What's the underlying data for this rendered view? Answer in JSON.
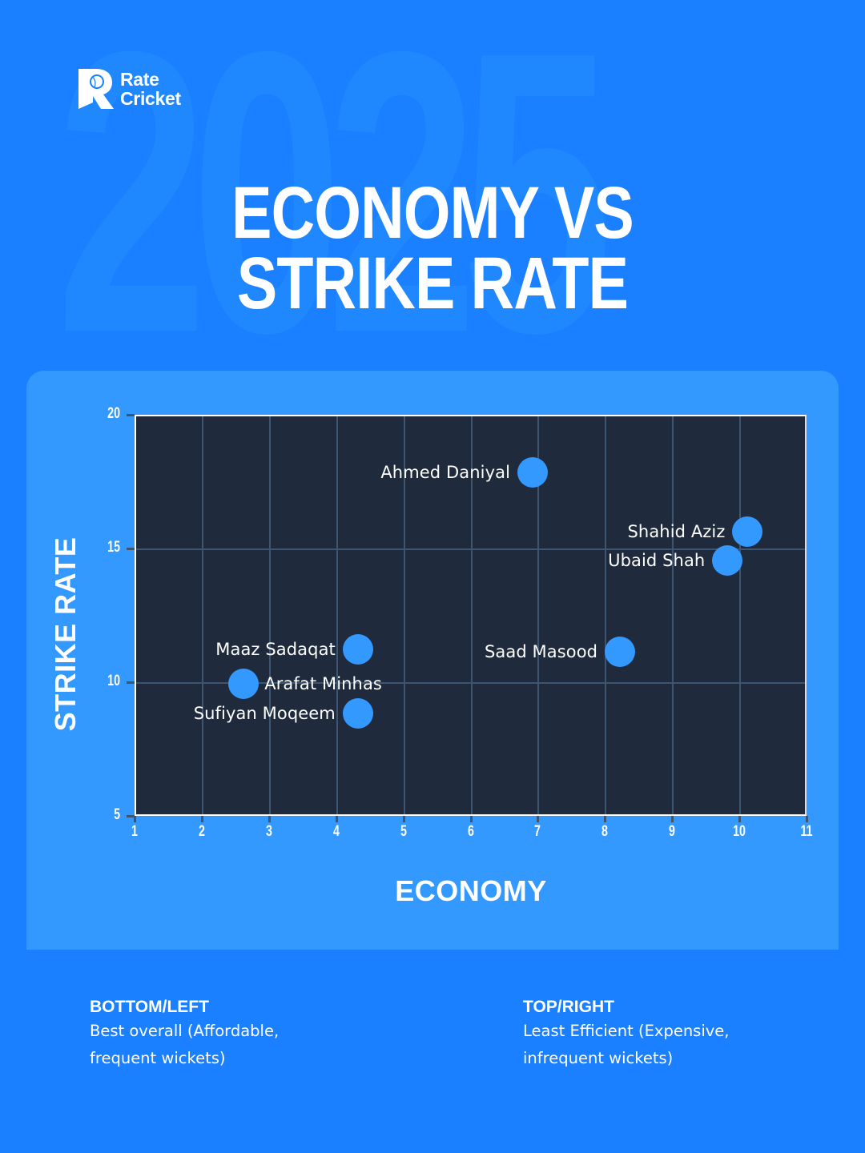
{
  "watermark": "2025",
  "brand": {
    "line1": "Rate",
    "line2": "Cricket"
  },
  "title": {
    "line1": "ECONOMY VS",
    "line2": "STRIKE RATE"
  },
  "colors": {
    "background": "#1a80ff",
    "panel": "#3399ff",
    "plot_bg": "#1f2a3d",
    "grid": "#3d5571",
    "marker": "#3399ff",
    "text": "#ffffff"
  },
  "axes": {
    "x_title": "ECONOMY",
    "y_title": "STRIKE RATE",
    "x_ticks": [
      "1",
      "2",
      "3",
      "4",
      "5",
      "6",
      "7",
      "8",
      "9",
      "10",
      "11"
    ],
    "y_ticks": [
      "20",
      "15",
      "10",
      "5"
    ]
  },
  "legend": [
    {
      "heading": "BOTTOM/LEFT",
      "line1": "Best overall (Affordable,",
      "line2": "frequent wickets)"
    },
    {
      "heading": "TOP/RIGHT",
      "line1": "Least Efficient (Expensive,",
      "line2": "infrequent wickets)"
    }
  ],
  "chart_data": {
    "type": "scatter",
    "title": "ECONOMY VS STRIKE RATE",
    "xlabel": "ECONOMY",
    "ylabel": "STRIKE RATE",
    "xlim": [
      1,
      11
    ],
    "ylim": [
      5,
      20
    ],
    "x_ticks": [
      1,
      2,
      3,
      4,
      5,
      6,
      7,
      8,
      9,
      10,
      11
    ],
    "y_ticks": [
      5,
      10,
      15,
      20
    ],
    "grid": true,
    "legend_position": "none",
    "points": [
      {
        "label": "Ahmed Daniyal",
        "x": 6.9,
        "y": 17.9,
        "label_side": "left"
      },
      {
        "label": "Shahid Aziz",
        "x": 10.1,
        "y": 15.7,
        "label_side": "left"
      },
      {
        "label": "Ubaid Shah",
        "x": 9.8,
        "y": 14.6,
        "label_side": "left"
      },
      {
        "label": "Maaz Sadaqat",
        "x": 4.3,
        "y": 11.3,
        "label_side": "left"
      },
      {
        "label": "Saad Masood",
        "x": 8.2,
        "y": 11.2,
        "label_side": "left"
      },
      {
        "label": "Arafat Minhas",
        "x": 2.6,
        "y": 10.0,
        "label_side": "right"
      },
      {
        "label": "Sufiyan Moqeem",
        "x": 4.3,
        "y": 8.9,
        "label_side": "left"
      }
    ],
    "annotations": [
      "BOTTOM/LEFT: Best overall (Affordable, frequent wickets)",
      "TOP/RIGHT: Least Efficient (Expensive, infrequent wickets)"
    ]
  }
}
